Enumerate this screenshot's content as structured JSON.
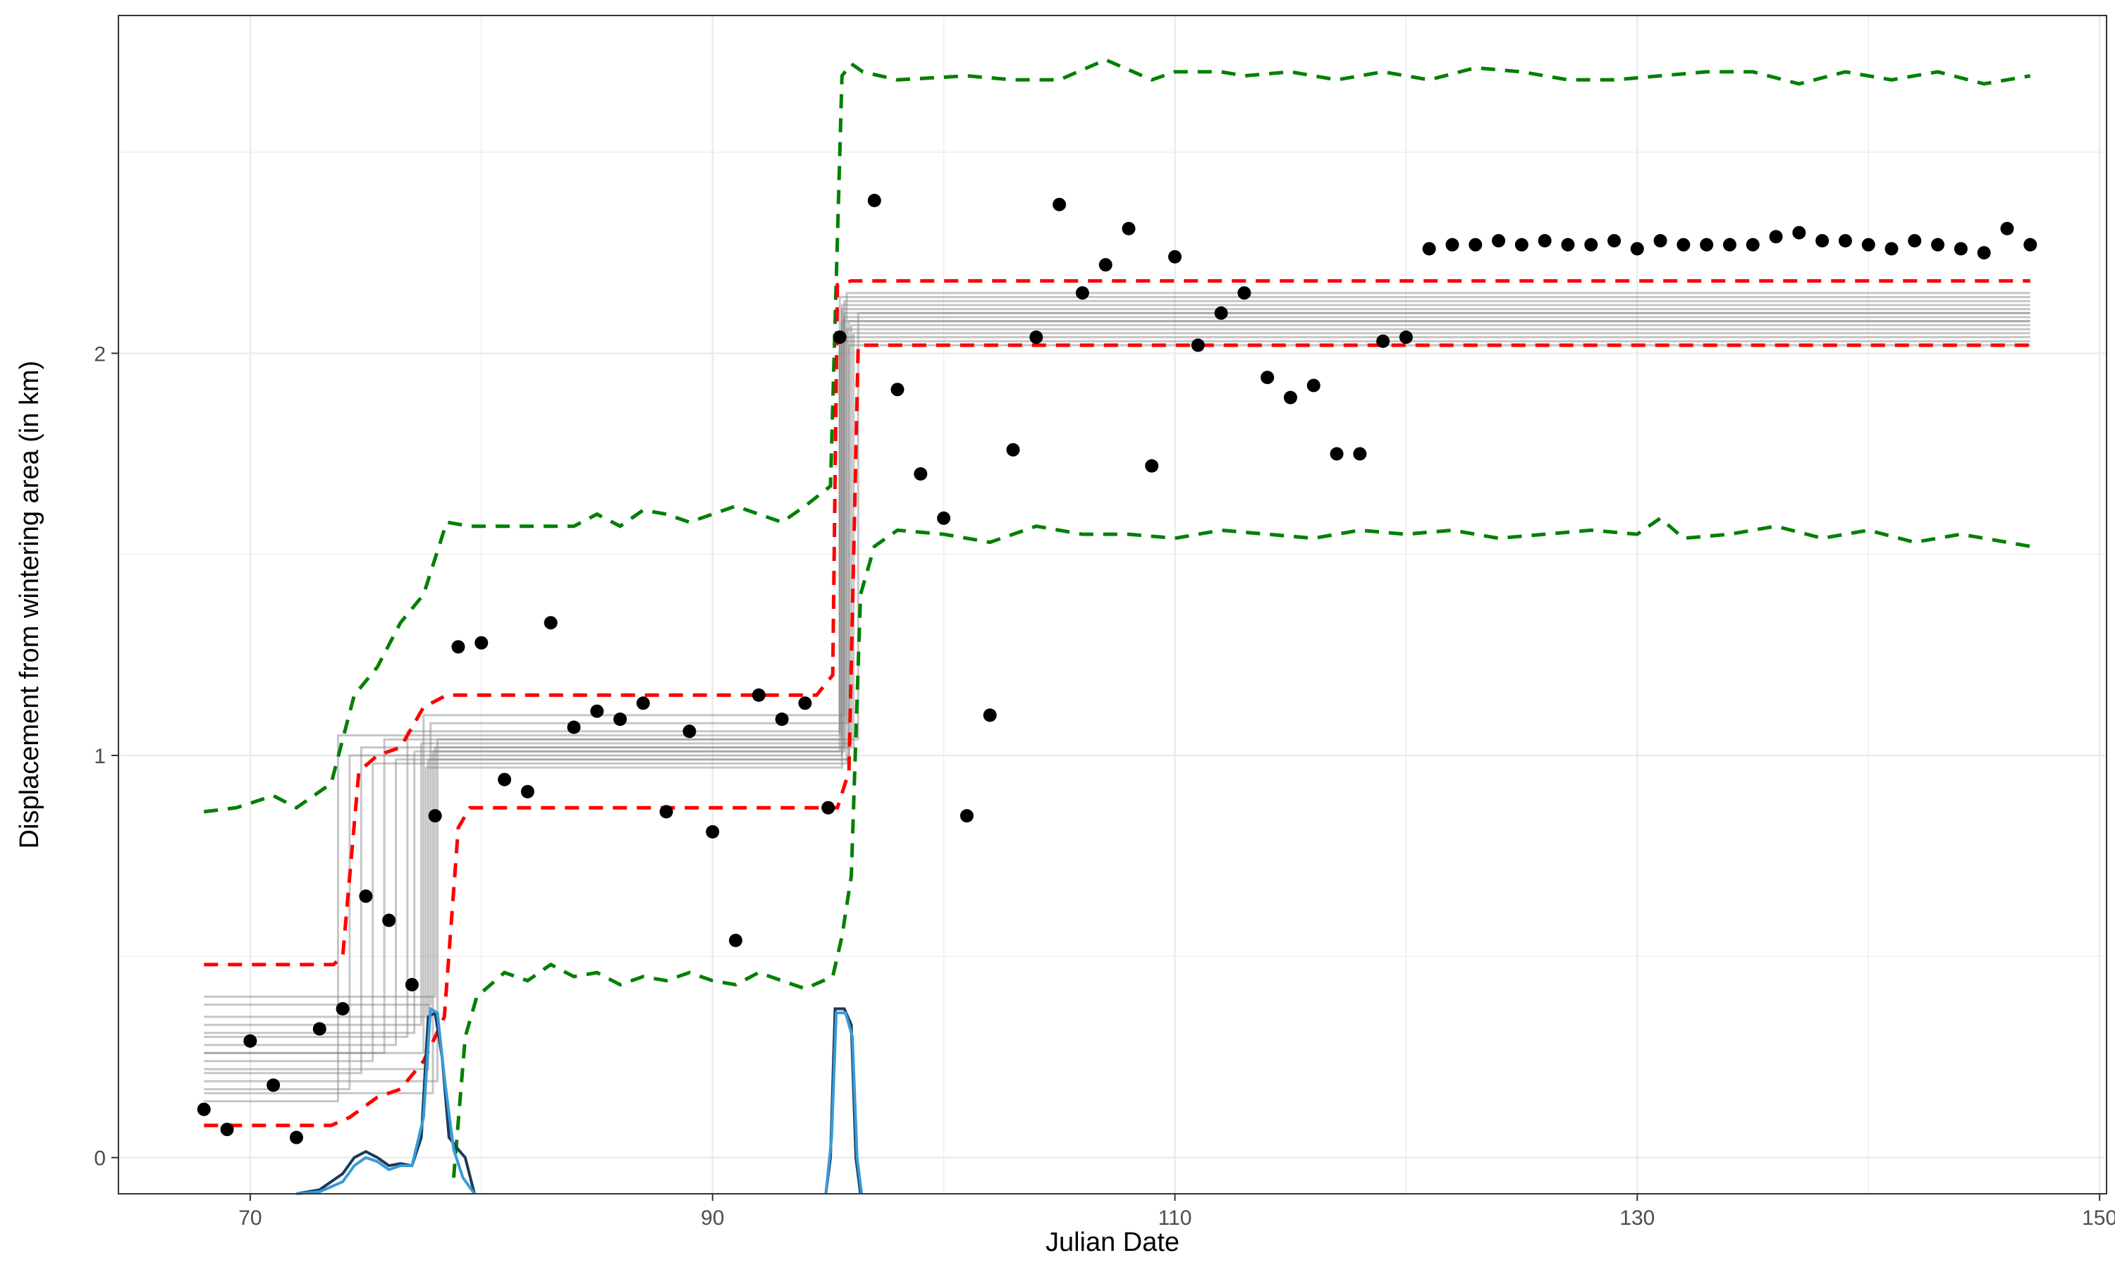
{
  "chart_data": {
    "type": "scatter",
    "title": "",
    "xlabel": "Julian Date",
    "ylabel": "Displacement from wintering area (in km)",
    "xlim": [
      64.3,
      150.3
    ],
    "ylim": [
      -0.09,
      2.84
    ],
    "x_ticks": [
      70,
      90,
      110,
      130,
      150
    ],
    "y_ticks": [
      0,
      1,
      2
    ],
    "grid": true,
    "legend": "none",
    "colors": {
      "points": "#000000",
      "posterior_steps": "#808080",
      "inner_interval": "#ff0000",
      "outer_interval": "#008000",
      "density_dark": "#1a3a5c",
      "density_light": "#3a9ad9",
      "grid": "#ebebeb",
      "panel_border": "#333333"
    },
    "points": [
      [
        68,
        0.12
      ],
      [
        69,
        0.07
      ],
      [
        70,
        0.29
      ],
      [
        71,
        0.18
      ],
      [
        72,
        0.05
      ],
      [
        73,
        0.32
      ],
      [
        74,
        0.37
      ],
      [
        75,
        0.65
      ],
      [
        76,
        0.59
      ],
      [
        77,
        0.43
      ],
      [
        78,
        0.85
      ],
      [
        79,
        1.27
      ],
      [
        80,
        1.28
      ],
      [
        81,
        0.94
      ],
      [
        82,
        0.91
      ],
      [
        83,
        1.33
      ],
      [
        84,
        1.07
      ],
      [
        85,
        1.11
      ],
      [
        86,
        1.09
      ],
      [
        87,
        1.13
      ],
      [
        88,
        0.86
      ],
      [
        89,
        1.06
      ],
      [
        90,
        0.81
      ],
      [
        91,
        0.54
      ],
      [
        92,
        1.15
      ],
      [
        93,
        1.09
      ],
      [
        94,
        1.13
      ],
      [
        95,
        0.87
      ],
      [
        95.5,
        2.04
      ],
      [
        97,
        2.38
      ],
      [
        98,
        1.91
      ],
      [
        99,
        1.7
      ],
      [
        100,
        1.59
      ],
      [
        101,
        0.85
      ],
      [
        102,
        1.1
      ],
      [
        103,
        1.76
      ],
      [
        104,
        2.04
      ],
      [
        105,
        2.37
      ],
      [
        106,
        2.15
      ],
      [
        107,
        2.22
      ],
      [
        108,
        2.31
      ],
      [
        109,
        1.72
      ],
      [
        110,
        2.24
      ],
      [
        111,
        2.02
      ],
      [
        112,
        2.1
      ],
      [
        113,
        2.15
      ],
      [
        114,
        1.94
      ],
      [
        115,
        1.89
      ],
      [
        116,
        1.92
      ],
      [
        117,
        1.75
      ],
      [
        118,
        1.75
      ],
      [
        119,
        2.03
      ],
      [
        120,
        2.04
      ],
      [
        121,
        2.26
      ],
      [
        122,
        2.27
      ],
      [
        123,
        2.27
      ],
      [
        124,
        2.28
      ],
      [
        125,
        2.27
      ],
      [
        126,
        2.28
      ],
      [
        127,
        2.27
      ],
      [
        128,
        2.27
      ],
      [
        129,
        2.28
      ],
      [
        130,
        2.26
      ],
      [
        131,
        2.28
      ],
      [
        132,
        2.27
      ],
      [
        133,
        2.27
      ],
      [
        134,
        2.27
      ],
      [
        135,
        2.27
      ],
      [
        136,
        2.29
      ],
      [
        137,
        2.3
      ],
      [
        138,
        2.28
      ],
      [
        139,
        2.28
      ],
      [
        140,
        2.27
      ],
      [
        141,
        2.26
      ],
      [
        142,
        2.28
      ],
      [
        143,
        2.27
      ],
      [
        144,
        2.26
      ],
      [
        145,
        2.25
      ],
      [
        146,
        2.31
      ],
      [
        147,
        2.27
      ]
    ],
    "step_curves": [
      {
        "l1": 0.14,
        "s1": 73.8,
        "l2": 1.05,
        "s2": 95.5,
        "l3": 2.04
      },
      {
        "l1": 0.17,
        "s1": 74.3,
        "l2": 1.0,
        "s2": 95.6,
        "l3": 2.08
      },
      {
        "l1": 0.21,
        "s1": 74.8,
        "l2": 1.02,
        "s2": 95.7,
        "l3": 2.1
      },
      {
        "l1": 0.24,
        "s1": 75.3,
        "l2": 0.98,
        "s2": 95.8,
        "l3": 2.06
      },
      {
        "l1": 0.26,
        "s1": 75.8,
        "l2": 1.04,
        "s2": 95.6,
        "l3": 2.12
      },
      {
        "l1": 0.28,
        "s1": 76.3,
        "l2": 0.99,
        "s2": 95.9,
        "l3": 2.02
      },
      {
        "l1": 0.3,
        "s1": 76.8,
        "l2": 1.06,
        "s2": 95.5,
        "l3": 2.14
      },
      {
        "l1": 0.31,
        "s1": 77.1,
        "l2": 1.01,
        "s2": 95.7,
        "l3": 2.09
      },
      {
        "l1": 0.33,
        "s1": 77.4,
        "l2": 1.03,
        "s2": 96.0,
        "l3": 2.07
      },
      {
        "l1": 0.35,
        "s1": 77.6,
        "l2": 0.97,
        "s2": 95.6,
        "l3": 2.11
      },
      {
        "l1": 0.38,
        "s1": 77.8,
        "l2": 1.08,
        "s2": 95.8,
        "l3": 2.15
      },
      {
        "l1": 0.4,
        "s1": 78.0,
        "l2": 1.02,
        "s2": 96.1,
        "l3": 2.05
      },
      {
        "l1": 0.26,
        "s1": 77.5,
        "l2": 1.1,
        "s2": 95.7,
        "l3": 2.13
      },
      {
        "l1": 0.22,
        "s1": 77.7,
        "l2": 0.99,
        "s2": 95.9,
        "l3": 2.08
      },
      {
        "l1": 0.19,
        "s1": 78.1,
        "l2": 1.04,
        "s2": 96.3,
        "l3": 2.1
      },
      {
        "l1": 0.16,
        "s1": 77.9,
        "l2": 1.01,
        "s2": 95.5,
        "l3": 2.03
      }
    ],
    "inner_interval": {
      "upper": [
        [
          68,
          0.48
        ],
        [
          73.6,
          0.48
        ],
        [
          74,
          0.5
        ],
        [
          74.7,
          0.96
        ],
        [
          75.5,
          1.0
        ],
        [
          76.5,
          1.02
        ],
        [
          77.5,
          1.12
        ],
        [
          78.5,
          1.15
        ],
        [
          94.5,
          1.15
        ],
        [
          95.2,
          1.2
        ],
        [
          95.4,
          2.17
        ],
        [
          96,
          2.18
        ],
        [
          147,
          2.18
        ]
      ],
      "lower": [
        [
          68,
          0.08
        ],
        [
          73.5,
          0.08
        ],
        [
          74.3,
          0.1
        ],
        [
          75.5,
          0.15
        ],
        [
          76.5,
          0.17
        ],
        [
          77.5,
          0.24
        ],
        [
          78,
          0.3
        ],
        [
          78.4,
          0.35
        ],
        [
          79,
          0.82
        ],
        [
          79.5,
          0.87
        ],
        [
          95.4,
          0.87
        ],
        [
          95.9,
          0.96
        ],
        [
          96.3,
          2.02
        ],
        [
          147,
          2.02
        ]
      ]
    },
    "outer_interval": {
      "upper": [
        [
          68,
          0.86
        ],
        [
          69.4,
          0.87
        ],
        [
          71,
          0.9
        ],
        [
          72,
          0.87
        ],
        [
          73.5,
          0.93
        ],
        [
          74.5,
          1.15
        ],
        [
          75.5,
          1.22
        ],
        [
          76.5,
          1.33
        ],
        [
          77.5,
          1.4
        ],
        [
          78.5,
          1.58
        ],
        [
          79.5,
          1.57
        ],
        [
          84,
          1.57
        ],
        [
          85,
          1.6
        ],
        [
          86,
          1.57
        ],
        [
          87,
          1.61
        ],
        [
          88,
          1.6
        ],
        [
          89,
          1.58
        ],
        [
          90,
          1.6
        ],
        [
          91,
          1.62
        ],
        [
          92,
          1.6
        ],
        [
          93,
          1.58
        ],
        [
          94,
          1.62
        ],
        [
          95.1,
          1.67
        ],
        [
          95.6,
          2.69
        ],
        [
          96,
          2.72
        ],
        [
          96.5,
          2.7
        ],
        [
          98,
          2.68
        ],
        [
          101,
          2.69
        ],
        [
          103,
          2.68
        ],
        [
          105,
          2.68
        ],
        [
          107,
          2.73
        ],
        [
          109,
          2.68
        ],
        [
          110,
          2.7
        ],
        [
          112,
          2.7
        ],
        [
          113,
          2.69
        ],
        [
          115,
          2.7
        ],
        [
          117,
          2.68
        ],
        [
          119,
          2.7
        ],
        [
          121,
          2.68
        ],
        [
          123,
          2.71
        ],
        [
          125,
          2.7
        ],
        [
          127,
          2.68
        ],
        [
          129,
          2.68
        ],
        [
          131,
          2.69
        ],
        [
          133,
          2.7
        ],
        [
          135,
          2.7
        ],
        [
          137,
          2.67
        ],
        [
          139,
          2.7
        ],
        [
          141,
          2.68
        ],
        [
          143,
          2.7
        ],
        [
          145,
          2.67
        ],
        [
          147,
          2.69
        ]
      ],
      "lower": [
        [
          78.8,
          -0.05
        ],
        [
          79.3,
          0.3
        ],
        [
          79.8,
          0.4
        ],
        [
          81,
          0.46
        ],
        [
          82,
          0.44
        ],
        [
          83,
          0.48
        ],
        [
          84,
          0.45
        ],
        [
          85,
          0.46
        ],
        [
          86,
          0.43
        ],
        [
          87,
          0.45
        ],
        [
          88,
          0.44
        ],
        [
          89,
          0.46
        ],
        [
          90,
          0.44
        ],
        [
          91,
          0.43
        ],
        [
          92,
          0.46
        ],
        [
          93,
          0.44
        ],
        [
          94,
          0.42
        ],
        [
          95.2,
          0.45
        ],
        [
          95.6,
          0.55
        ],
        [
          96,
          0.7
        ],
        [
          96.4,
          1.4
        ],
        [
          97,
          1.52
        ],
        [
          98,
          1.56
        ],
        [
          100,
          1.55
        ],
        [
          102,
          1.53
        ],
        [
          104,
          1.57
        ],
        [
          106,
          1.55
        ],
        [
          108,
          1.55
        ],
        [
          110,
          1.54
        ],
        [
          112,
          1.56
        ],
        [
          114,
          1.55
        ],
        [
          116,
          1.54
        ],
        [
          118,
          1.56
        ],
        [
          120,
          1.55
        ],
        [
          122,
          1.56
        ],
        [
          124,
          1.54
        ],
        [
          126,
          1.55
        ],
        [
          128,
          1.56
        ],
        [
          130,
          1.55
        ],
        [
          131,
          1.59
        ],
        [
          132,
          1.54
        ],
        [
          134,
          1.55
        ],
        [
          136,
          1.57
        ],
        [
          138,
          1.54
        ],
        [
          140,
          1.56
        ],
        [
          142,
          1.53
        ],
        [
          144,
          1.55
        ],
        [
          146,
          1.53
        ],
        [
          147,
          1.52
        ]
      ]
    },
    "density_curves": [
      {
        "color": "dark",
        "points": [
          [
            72,
            -0.09
          ],
          [
            73,
            -0.08
          ],
          [
            74,
            -0.04
          ],
          [
            74.5,
            0.0
          ],
          [
            75,
            0.015
          ],
          [
            75.5,
            0.0
          ],
          [
            76,
            -0.02
          ],
          [
            76.5,
            -0.015
          ],
          [
            77,
            -0.02
          ],
          [
            77.4,
            0.05
          ],
          [
            77.7,
            0.35
          ],
          [
            78,
            0.36
          ],
          [
            78.3,
            0.25
          ],
          [
            78.6,
            0.05
          ],
          [
            79,
            0.02
          ],
          [
            79.3,
            0.0
          ],
          [
            79.7,
            -0.09
          ]
        ]
      },
      {
        "color": "light",
        "points": [
          [
            72,
            -0.09
          ],
          [
            73,
            -0.085
          ],
          [
            74,
            -0.06
          ],
          [
            74.5,
            -0.02
          ],
          [
            75,
            0.0
          ],
          [
            75.5,
            -0.01
          ],
          [
            76,
            -0.03
          ],
          [
            76.5,
            -0.02
          ],
          [
            77,
            -0.02
          ],
          [
            77.5,
            0.1
          ],
          [
            77.8,
            0.37
          ],
          [
            78.1,
            0.36
          ],
          [
            78.4,
            0.2
          ],
          [
            78.8,
            0.02
          ],
          [
            79.2,
            -0.05
          ],
          [
            79.7,
            -0.09
          ]
        ]
      },
      {
        "color": "dark",
        "points": [
          [
            94.9,
            -0.09
          ],
          [
            95.1,
            0.0
          ],
          [
            95.3,
            0.37
          ],
          [
            95.7,
            0.37
          ],
          [
            96,
            0.33
          ],
          [
            96.2,
            0.0
          ],
          [
            96.4,
            -0.09
          ]
        ]
      },
      {
        "color": "light",
        "points": [
          [
            94.9,
            -0.09
          ],
          [
            95.15,
            0.05
          ],
          [
            95.35,
            0.36
          ],
          [
            95.75,
            0.36
          ],
          [
            96.05,
            0.3
          ],
          [
            96.25,
            0.0
          ],
          [
            96.45,
            -0.09
          ]
        ]
      }
    ]
  }
}
